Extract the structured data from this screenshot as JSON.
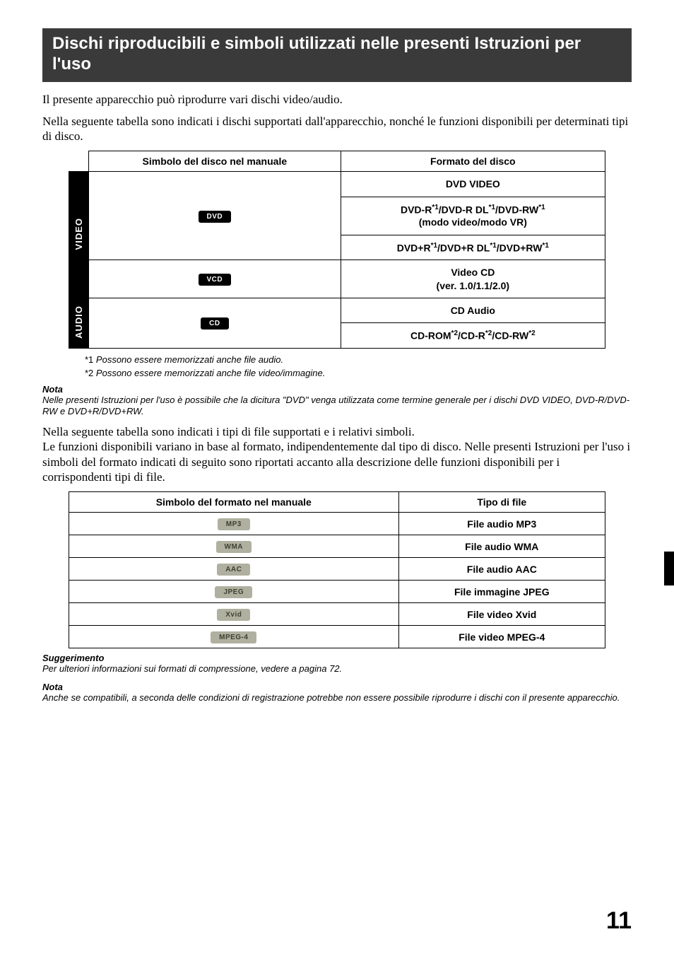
{
  "title": "Dischi riproducibili e simboli utilizzati nelle presenti Istruzioni per l'uso",
  "intro": {
    "p1": "Il presente apparecchio può riprodurre vari dischi video/audio.",
    "p2": "Nella seguente tabella sono indicati i dischi supportati dall'apparecchio, nonché le funzioni disponibili per determinati tipi di disco."
  },
  "disc_table": {
    "h1": "Simbolo del disco nel manuale",
    "h2": "Formato del disco",
    "video_label": "VIDEO",
    "audio_label": "AUDIO",
    "badges": {
      "dvd": "DVD",
      "vcd": "VCD",
      "cd": "CD"
    },
    "rows": {
      "r1": "DVD VIDEO",
      "r2a": "DVD-R",
      "r2b": "/DVD-R DL",
      "r2c": "/DVD-RW",
      "r2sub": "(modo video/modo VR)",
      "r3a": "DVD+R",
      "r3b": "/DVD+R DL",
      "r3c": "/DVD+RW",
      "r4a": "Video CD",
      "r4b": "(ver. 1.0/1.1/2.0)",
      "r5": "CD Audio",
      "r6a": "CD-ROM",
      "r6b": "/CD-R",
      "r6c": "/CD-RW"
    },
    "star1": "*1",
    "star2": "*2"
  },
  "footnotes": {
    "f1_star": "*1",
    "f1": "Possono essere memorizzati anche file audio.",
    "f2_star": "*2",
    "f2": "Possono essere memorizzati anche file video/immagine."
  },
  "nota1": {
    "head": "Nota",
    "body": "Nelle presenti Istruzioni per l'uso è possibile che la dicitura \"DVD\" venga utilizzata come termine generale per i dischi DVD VIDEO, DVD-R/DVD-RW e DVD+R/DVD+RW."
  },
  "mid": {
    "p1": "Nella seguente tabella sono indicati i tipi di file supportati e i relativi simboli.",
    "p2": "Le funzioni disponibili variano in base al formato, indipendentemente dal tipo di disco. Nelle presenti Istruzioni per l'uso i simboli del formato indicati di seguito sono riportati accanto alla descrizione delle funzioni disponibili per i corrispondenti tipi di file."
  },
  "file_table": {
    "h1": "Simbolo del formato nel manuale",
    "h2": "Tipo di file",
    "rows": [
      {
        "badge": "MP3",
        "label": "File audio MP3"
      },
      {
        "badge": "WMA",
        "label": "File audio WMA"
      },
      {
        "badge": "AAC",
        "label": "File audio AAC"
      },
      {
        "badge": "JPEG",
        "label": "File immagine JPEG"
      },
      {
        "badge": "Xvid",
        "label": "File video Xvid"
      },
      {
        "badge": "MPEG-4",
        "label": "File video MPEG-4"
      }
    ]
  },
  "sugg": {
    "head": "Suggerimento",
    "body": "Per ulteriori informazioni sui formati di compressione, vedere a pagina 72."
  },
  "nota2": {
    "head": "Nota",
    "body": "Anche se compatibili, a seconda delle condizioni di registrazione potrebbe non essere possibile riprodurre i dischi con il presente apparecchio."
  },
  "page_number": "11"
}
